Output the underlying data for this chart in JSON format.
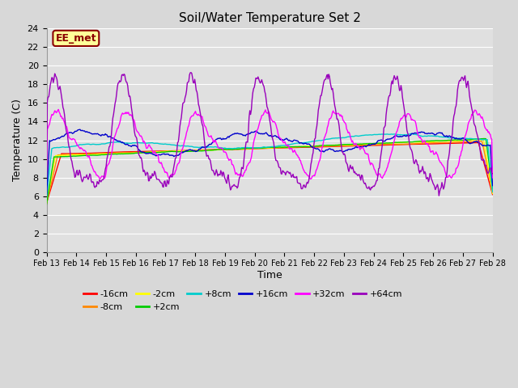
{
  "title": "Soil/Water Temperature Set 2",
  "xlabel": "Time",
  "ylabel": "Temperature (C)",
  "ylim": [
    0,
    24
  ],
  "yticks": [
    0,
    2,
    4,
    6,
    8,
    10,
    12,
    14,
    16,
    18,
    20,
    22,
    24
  ],
  "x_labels": [
    "Feb 13",
    "Feb 14",
    "Feb 15",
    "Feb 16",
    "Feb 17",
    "Feb 18",
    "Feb 19",
    "Feb 20",
    "Feb 21",
    "Feb 22",
    "Feb 23",
    "Feb 24",
    "Feb 25",
    "Feb 26",
    "Feb 27",
    "Feb 28"
  ],
  "watermark_text": "EE_met",
  "watermark_color": "#8B0000",
  "watermark_bg": "#FFFF99",
  "series_order": [
    "-16cm",
    "-8cm",
    "-2cm",
    "+2cm",
    "+8cm",
    "+16cm",
    "+32cm",
    "+64cm"
  ],
  "series_colors": [
    "#FF0000",
    "#FF8800",
    "#FFFF00",
    "#00CC00",
    "#00CCCC",
    "#0000CC",
    "#FF00FF",
    "#9900BB"
  ],
  "bg_color": "#E0E0E0",
  "grid_color": "#FFFFFF",
  "linewidth": 1.0,
  "figsize": [
    6.4,
    4.8
  ],
  "dpi": 100
}
